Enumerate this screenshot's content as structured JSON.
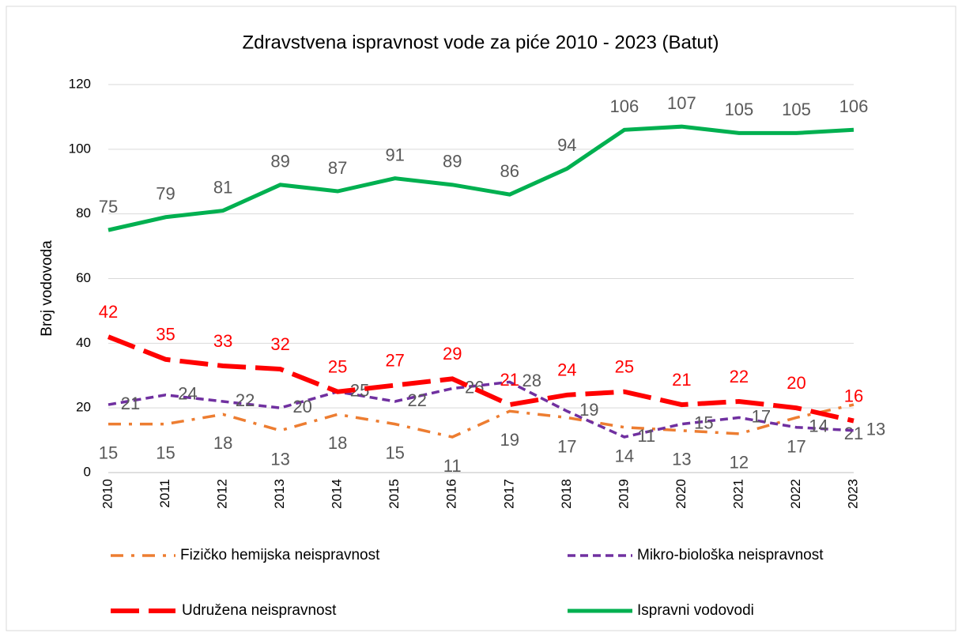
{
  "chart_data": {
    "type": "line",
    "title": "Zdravstvena ispravnost vode za piće 2010 - 2023 (Batut)",
    "y_label": "Broj vodovoda",
    "categories": [
      "2010",
      "2011",
      "2012",
      "2013",
      "2014",
      "2015",
      "2016",
      "2017",
      "2018",
      "2019",
      "2020",
      "2021",
      "2022",
      "2023"
    ],
    "series": [
      {
        "name": "Fizičko hemijska neispravnost",
        "color": "#ed7d31",
        "values": [
          15,
          15,
          18,
          13,
          18,
          15,
          11,
          19,
          17,
          14,
          13,
          12,
          17,
          21
        ]
      },
      {
        "name": "Mikro-biološka neispravnost",
        "color": "#7030a0",
        "values": [
          21,
          24,
          22,
          20,
          25,
          22,
          26,
          28,
          19,
          11,
          15,
          17,
          14,
          13
        ]
      },
      {
        "name": "Udružena neispravnost",
        "color": "#ff0000",
        "values": [
          42,
          35,
          33,
          32,
          25,
          27,
          29,
          21,
          24,
          25,
          21,
          22,
          20,
          16
        ]
      },
      {
        "name": "Ispravni vodovodi",
        "color": "#00b050",
        "values": [
          75,
          79,
          81,
          89,
          87,
          91,
          89,
          86,
          94,
          106,
          107,
          105,
          105,
          106
        ]
      }
    ],
    "ylim": [
      0,
      120
    ],
    "yticks": [
      0,
      20,
      40,
      60,
      80,
      100,
      120
    ],
    "grid": true
  }
}
